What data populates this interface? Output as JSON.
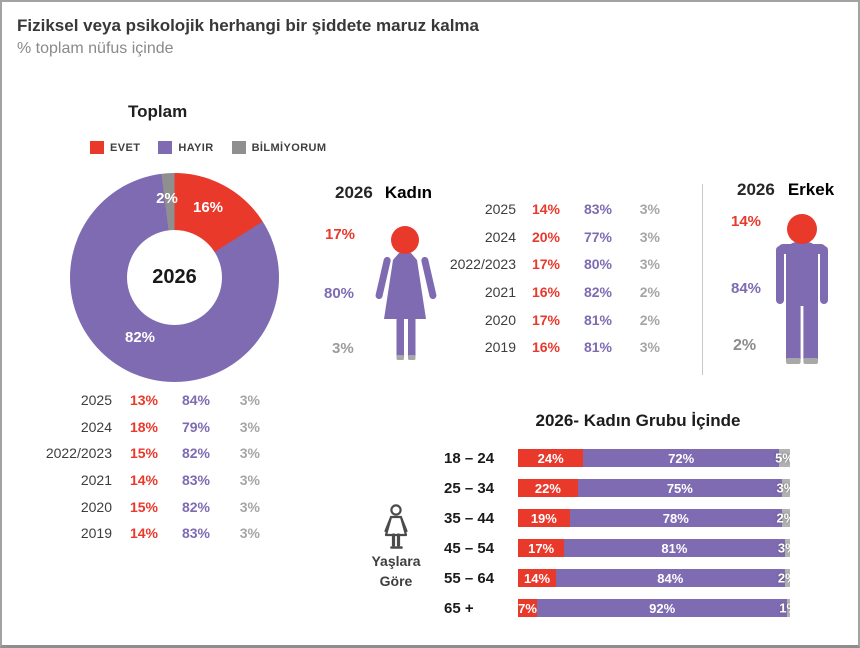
{
  "header": {
    "title": "Fiziksel veya psikolojik herhangi bir şiddete maruz kalma",
    "subtitle": "% toplam nüfus içinde"
  },
  "colors": {
    "evet": "#e8392b",
    "hayir": "#7e6bb2",
    "bilmiyorum": "#8f8f8f",
    "bar_bilmiyorum": "#b2b2b2",
    "feet": "#a8a8a8",
    "muted": "#a6a6a6",
    "divider": "#c9c9c9"
  },
  "legend": [
    {
      "key": "evet",
      "label": "EVET"
    },
    {
      "key": "hayir",
      "label": "HAYIR"
    },
    {
      "key": "bilmiyorum",
      "label": "BİLMİYORUM"
    }
  ],
  "sections": {
    "toplam": {
      "heading": "Toplam"
    },
    "kadin": {
      "year": "2026",
      "label": "Kadın"
    },
    "erkek": {
      "year": "2026",
      "label": "Erkek"
    },
    "age": {
      "heading": "2026- Kadın Grubu İçinde",
      "caption_line1": "Yaşlara",
      "caption_line2": "Göre"
    }
  },
  "chart_data": [
    {
      "id": "toplam-donut",
      "type": "pie",
      "title": "Toplam",
      "center_label": "2026",
      "labels": [
        "EVET",
        "HAYIR",
        "BİLMİYORUM"
      ],
      "values": [
        16,
        82,
        2
      ],
      "unit": "%"
    },
    {
      "id": "toplam-trend",
      "type": "table",
      "columns": [
        "year",
        "EVET",
        "HAYIR",
        "BİLMİYORUM"
      ],
      "rows": [
        [
          "2025",
          "13%",
          "84%",
          "3%"
        ],
        [
          "2024",
          "18%",
          "79%",
          "3%"
        ],
        [
          "2022/2023",
          "15%",
          "82%",
          "3%"
        ],
        [
          "2021",
          "14%",
          "83%",
          "3%"
        ],
        [
          "2020",
          "15%",
          "82%",
          "3%"
        ],
        [
          "2019",
          "14%",
          "83%",
          "3%"
        ]
      ]
    },
    {
      "id": "kadin-2026",
      "type": "pictogram",
      "title": "2026 Kadın",
      "labels": [
        "EVET",
        "HAYIR",
        "BİLMİYORUM"
      ],
      "values": [
        17,
        80,
        3
      ],
      "unit": "%"
    },
    {
      "id": "kadin-trend",
      "type": "table",
      "columns": [
        "year",
        "EVET",
        "HAYIR",
        "BİLMİYORUM"
      ],
      "rows": [
        [
          "2025",
          "14%",
          "83%",
          "3%"
        ],
        [
          "2024",
          "20%",
          "77%",
          "3%"
        ],
        [
          "2022/2023",
          "17%",
          "80%",
          "3%"
        ],
        [
          "2021",
          "16%",
          "82%",
          "2%"
        ],
        [
          "2020",
          "17%",
          "81%",
          "2%"
        ],
        [
          "2019",
          "16%",
          "81%",
          "3%"
        ]
      ]
    },
    {
      "id": "erkek-2026",
      "type": "pictogram",
      "title": "2026 Erkek",
      "labels": [
        "EVET",
        "HAYIR",
        "BİLMİYORUM"
      ],
      "values": [
        14,
        84,
        2
      ],
      "unit": "%"
    },
    {
      "id": "kadin-age-groups",
      "type": "bar",
      "title": "2026- Kadın Grubu İçinde",
      "orientation": "horizontal",
      "stacked": true,
      "categories": [
        "18 – 24",
        "25 – 34",
        "35 – 44",
        "45 – 54",
        "55 – 64",
        "65 +"
      ],
      "series": [
        {
          "name": "EVET",
          "values": [
            24,
            22,
            19,
            17,
            14,
            7
          ]
        },
        {
          "name": "HAYIR",
          "values": [
            72,
            75,
            78,
            81,
            84,
            92
          ]
        },
        {
          "name": "BİLMİYORUM",
          "values": [
            5,
            3,
            2,
            3,
            2,
            1
          ]
        }
      ]
    }
  ]
}
